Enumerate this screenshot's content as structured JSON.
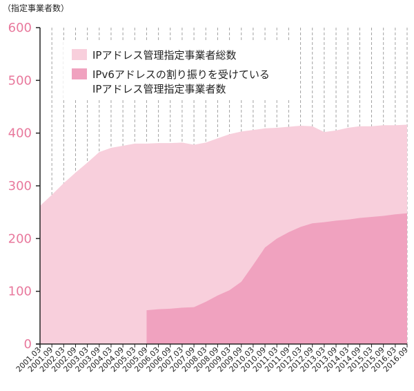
{
  "chart_data": {
    "type": "area",
    "ylabel": "（指定事業者数）",
    "ylim": [
      0,
      600
    ],
    "yticks": [
      "0",
      "100",
      "200",
      "300",
      "400",
      "500",
      "600"
    ],
    "grid": "vertical dashed",
    "legend_position": "top-center",
    "categories": [
      "2001.03",
      "2001.09",
      "2002.03",
      "2002.09",
      "2003.03",
      "2003.09",
      "2004.03",
      "2004.09",
      "2005.03",
      "2005.09",
      "2006.03",
      "2006.09",
      "2007.03",
      "2007.09",
      "2008.03",
      "2008.09",
      "2009.03",
      "2009.09",
      "2010.03",
      "2010.09",
      "2011.03",
      "2011.09",
      "2012.03",
      "2012.09",
      "2013.03",
      "2013.09",
      "2014.03",
      "2014.09",
      "2015.03",
      "2015.09",
      "2016.03",
      "2016.09"
    ],
    "series": [
      {
        "name": "IPアドレス管理指定事業者総数",
        "color": "#f8cfdc",
        "values": [
          262,
          283,
          305,
          325,
          344,
          364,
          372,
          376,
          380,
          380,
          381,
          381,
          382,
          378,
          382,
          390,
          398,
          403,
          406,
          409,
          410,
          412,
          414,
          413,
          402,
          405,
          410,
          413,
          413,
          415,
          415,
          416
        ]
      },
      {
        "name": "IPv6アドレスの割り振りを受けているIPアドレス管理指定事業者数",
        "label_lines": [
          "IPv6アドレスの割り振りを受けている",
          "IPアドレス管理指定事業者数"
        ],
        "color": "#f0a2bf",
        "values": [
          null,
          null,
          null,
          null,
          null,
          null,
          null,
          null,
          null,
          64,
          66,
          67,
          69,
          70,
          80,
          92,
          102,
          118,
          150,
          183,
          200,
          212,
          222,
          229,
          231,
          234,
          236,
          239,
          241,
          243,
          246,
          248
        ]
      }
    ]
  }
}
